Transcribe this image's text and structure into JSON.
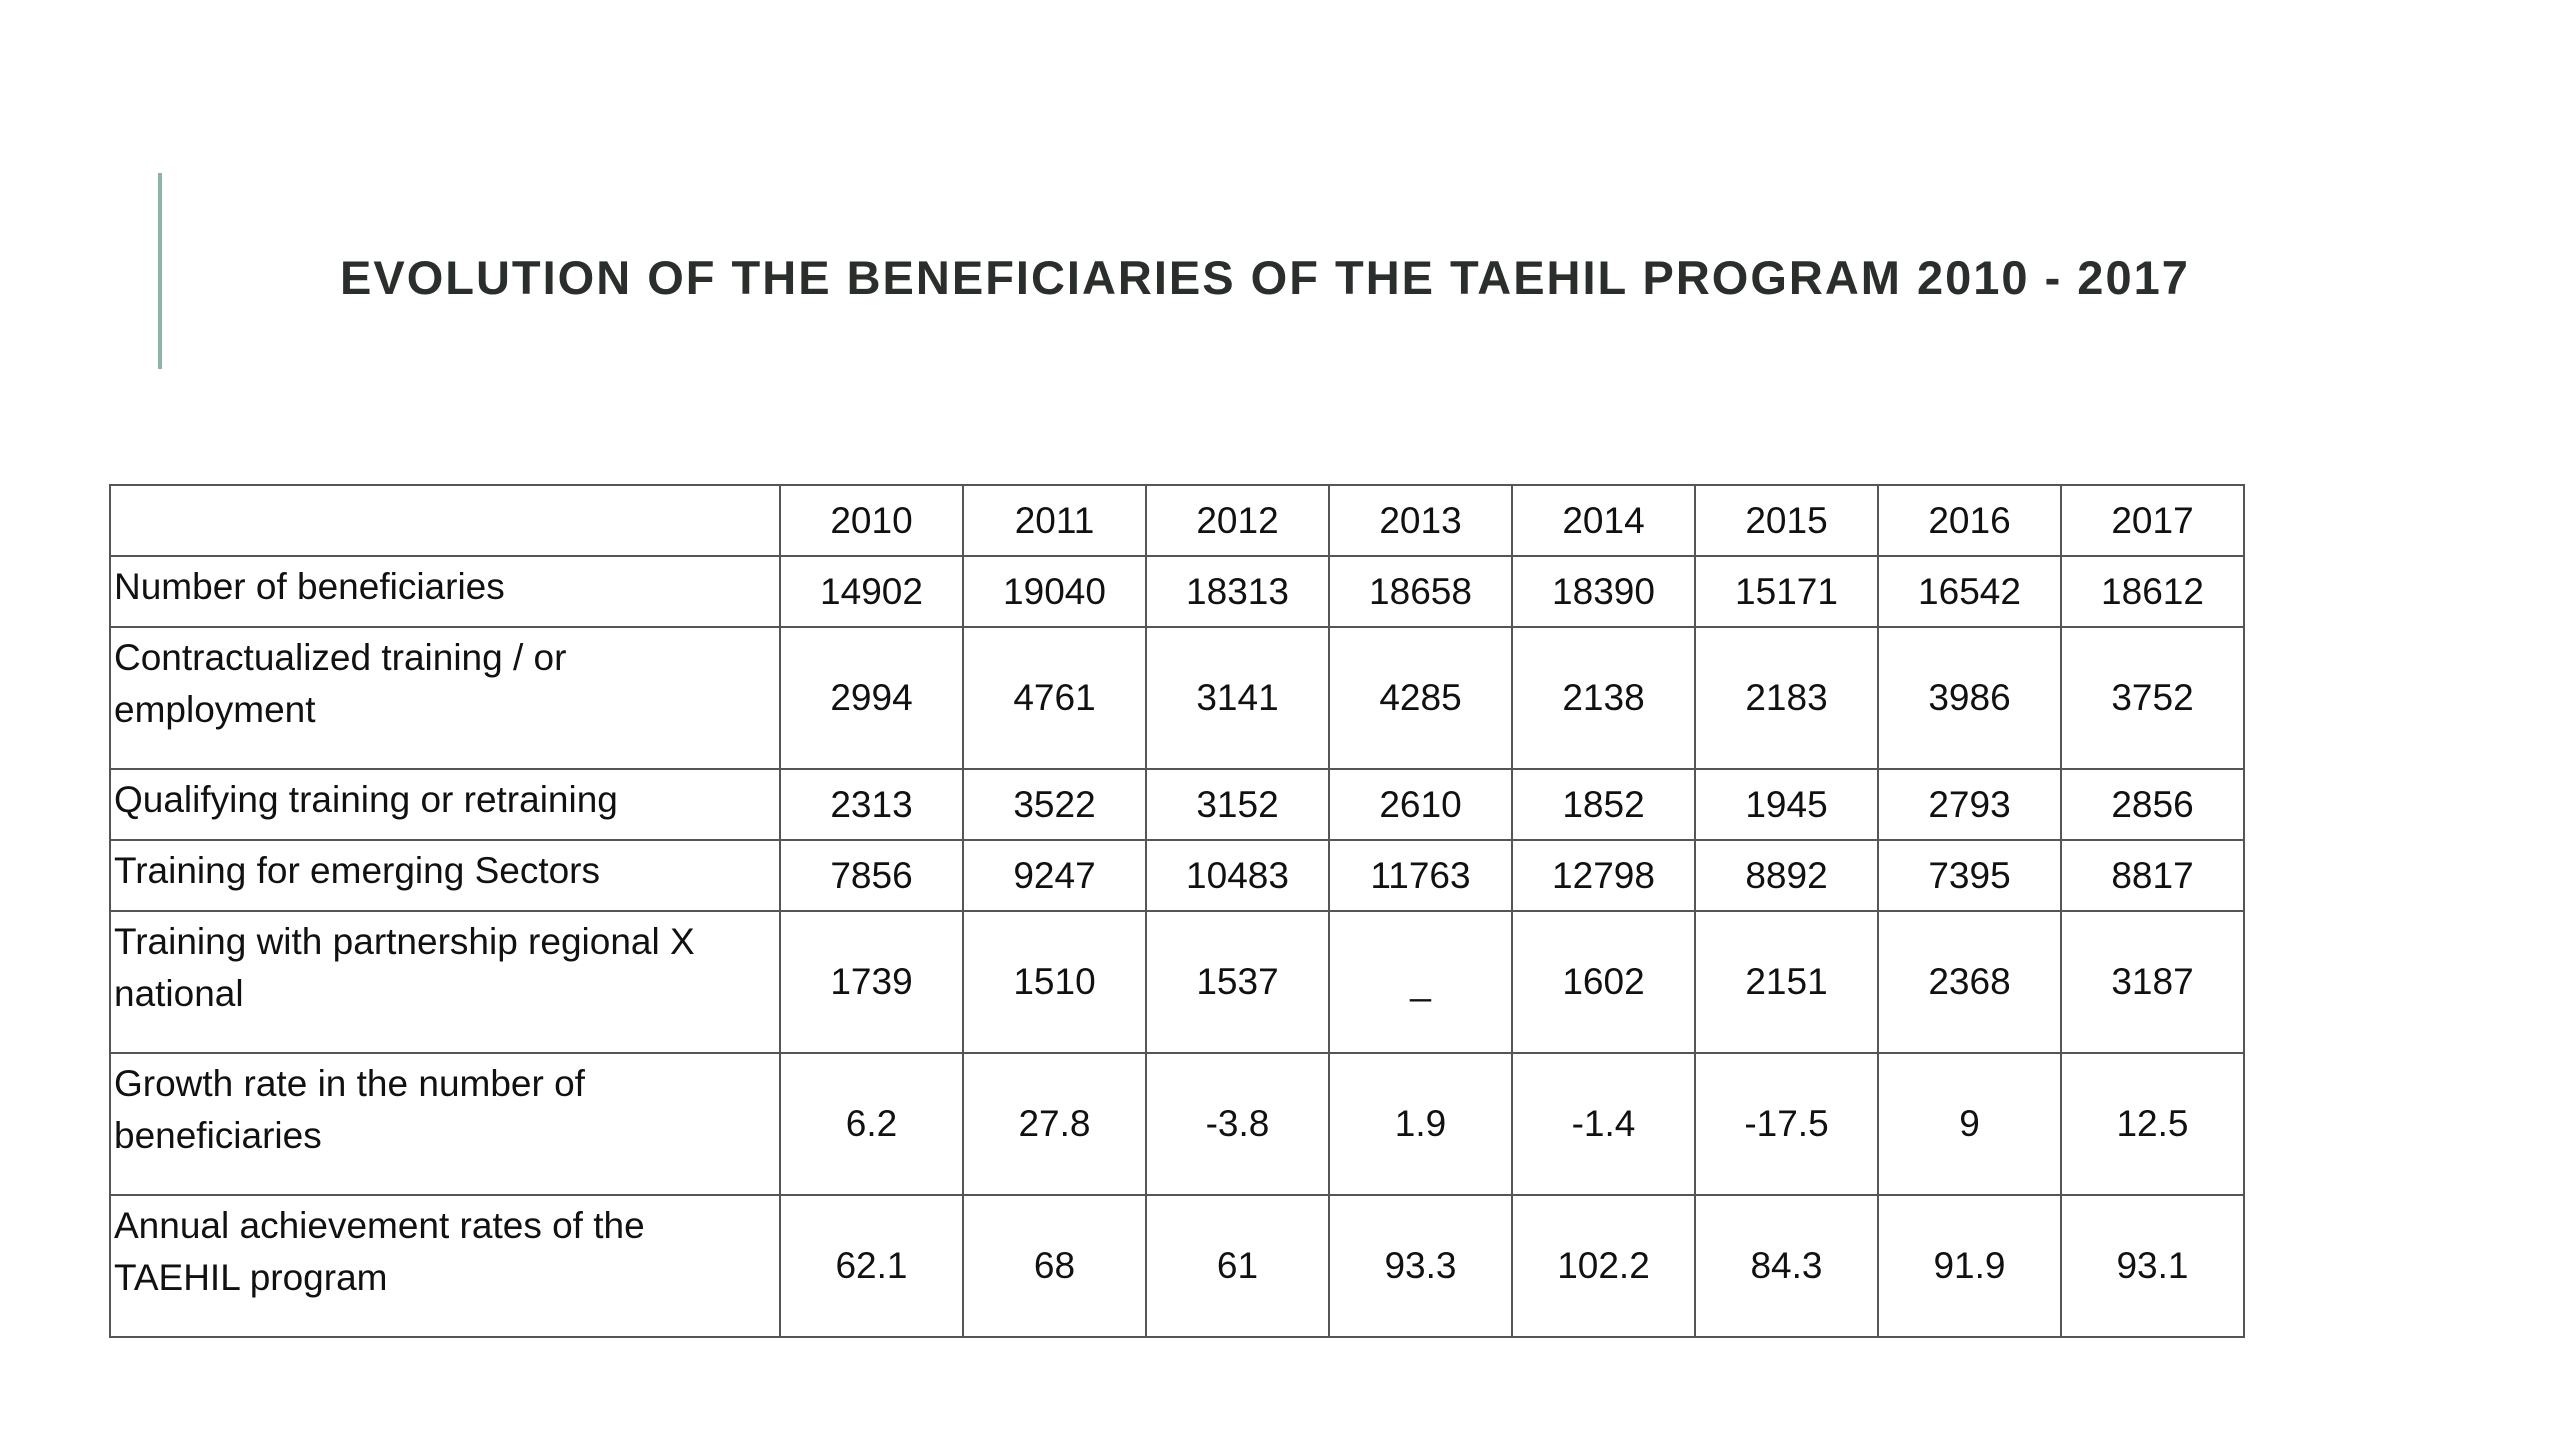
{
  "title": "EVOLUTION OF THE BENEFICIARIES OF THE TAEHIL PROGRAM 2010 - 2017",
  "accent_color": "#8fb3a6",
  "table": {
    "years": [
      "2010",
      "2011",
      "2012",
      "2013",
      "2014",
      "2015",
      "2016",
      "2017"
    ],
    "rows": [
      {
        "label": "Number of beneficiaries",
        "values": [
          "14902",
          "19040",
          "18313",
          "18658",
          "18390",
          "15171",
          "16542",
          "18612"
        ]
      },
      {
        "label": "Contractualized training / or employment",
        "values": [
          "2994",
          "4761",
          "3141",
          "4285",
          "2138",
          "2183",
          "3986",
          "3752"
        ]
      },
      {
        "label": "Qualifying training or retraining",
        "values": [
          "2313",
          "3522",
          "3152",
          "2610",
          "1852",
          "1945",
          "2793",
          "2856"
        ]
      },
      {
        "label": "Training for emerging Sectors",
        "values": [
          "7856",
          "9247",
          "10483",
          "11763",
          "12798",
          "8892",
          "7395",
          "8817"
        ]
      },
      {
        "label": "Training with partnership regional X national",
        "values": [
          "1739",
          "1510",
          "1537",
          "_",
          "1602",
          "2151",
          "2368",
          "3187"
        ]
      },
      {
        "label": "Growth rate in the number of beneficiaries",
        "values": [
          "6.2",
          "27.8",
          "-3.8",
          "1.9",
          "-1.4",
          "-17.5",
          "9",
          "12.5"
        ]
      },
      {
        "label": "Annual achievement rates of the TAEHIL program",
        "values": [
          "62.1",
          "68",
          "61",
          "93.3",
          "102.2",
          "84.3",
          "91.9",
          "93.1"
        ]
      }
    ]
  }
}
